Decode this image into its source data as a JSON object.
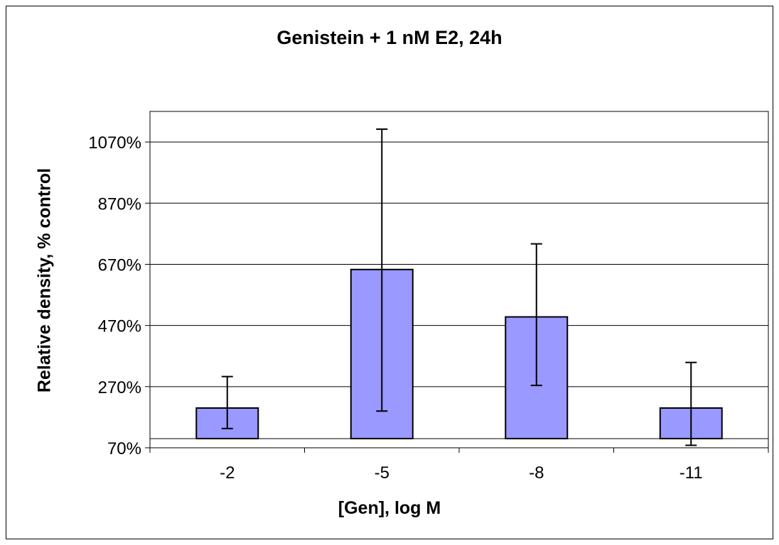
{
  "chart_data": {
    "type": "bar",
    "title": "Genistein + 1 nM E2, 24h",
    "xlabel": "[Gen], log M",
    "ylabel": "Relative density, % control",
    "categories": [
      "-2",
      "-5",
      "-8",
      "-11"
    ],
    "values": [
      200,
      653,
      498,
      200
    ],
    "error_upper": [
      303,
      1112,
      737,
      349
    ],
    "error_lower": [
      133,
      190,
      274,
      78
    ],
    "baseline": 100,
    "ylim": [
      70,
      1170
    ],
    "yticks": [
      70,
      270,
      470,
      670,
      870,
      1070
    ],
    "ytick_labels": [
      "70%",
      "270%",
      "470%",
      "670%",
      "870%",
      "1070%"
    ],
    "grid": true,
    "legend": "none",
    "bar_color": "#9999ff"
  }
}
